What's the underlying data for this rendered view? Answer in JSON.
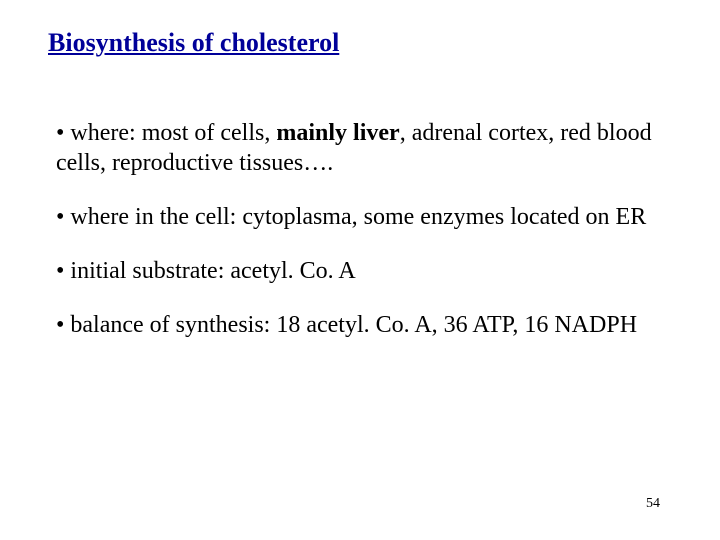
{
  "slide": {
    "title": "Biosynthesis of cholesterol",
    "title_color": "#000099",
    "title_fontsize": 26,
    "body_fontsize": 24,
    "body_color": "#000000",
    "background_color": "#ffffff",
    "bullets": [
      {
        "prefix": "• where: most of cells, ",
        "bold": "mainly liver",
        "suffix": ", adrenal cortex, red blood cells, reproductive tissues…."
      },
      {
        "prefix": "• where in the cell: cytoplasma, some enzymes located on ER",
        "bold": "",
        "suffix": ""
      },
      {
        "prefix": "• initial substrate:  acetyl. Co. A",
        "bold": "",
        "suffix": ""
      },
      {
        "prefix": "• balance of synthesis: 18  acetyl. Co. A, 36 ATP, 16 NADPH",
        "bold": "",
        "suffix": ""
      }
    ],
    "page_number": "54"
  }
}
